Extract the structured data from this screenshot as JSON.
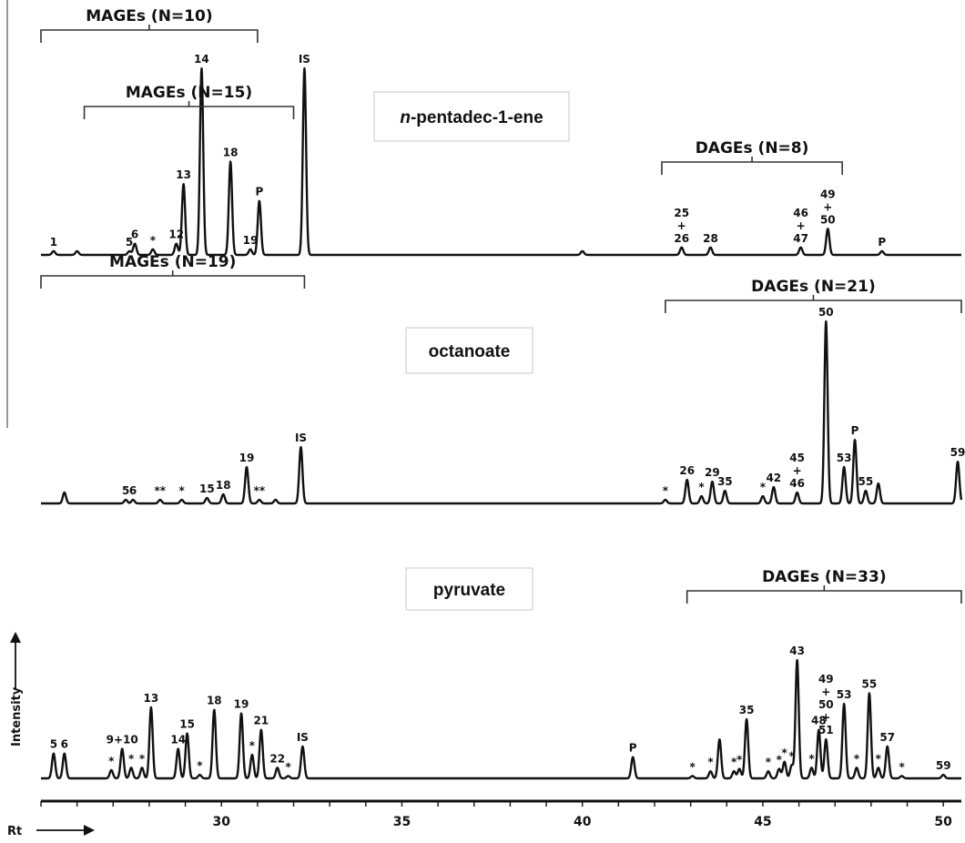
{
  "chart_data": {
    "type": "line",
    "x_axis": {
      "label": "Rt",
      "range": [
        25.0,
        50.5
      ],
      "ticks": [
        30,
        35,
        40,
        45,
        50
      ]
    },
    "y_axis": {
      "label": "Intensity"
    },
    "panels": [
      {
        "name": "n-pentadec-1-ene",
        "title_italic_prefix": "n",
        "title_rest": "-pentadec-1-ene",
        "peaks": [
          {
            "rt": 25.35,
            "h": 0.02,
            "label": "1"
          },
          {
            "rt": 26.0,
            "h": 0.02,
            "label": ""
          },
          {
            "rt": 27.45,
            "h": 0.02,
            "label": "5"
          },
          {
            "rt": 27.6,
            "h": 0.06,
            "label": "6"
          },
          {
            "rt": 28.1,
            "h": 0.03,
            "label": "*"
          },
          {
            "rt": 28.75,
            "h": 0.06,
            "label": "12"
          },
          {
            "rt": 28.95,
            "h": 0.38,
            "label": "13"
          },
          {
            "rt": 29.45,
            "h": 1.0,
            "label": "14"
          },
          {
            "rt": 30.25,
            "h": 0.5,
            "label": "18"
          },
          {
            "rt": 30.8,
            "h": 0.03,
            "label": "19"
          },
          {
            "rt": 31.05,
            "h": 0.29,
            "label": "P"
          },
          {
            "rt": 32.3,
            "h": 1.0,
            "label": "IS"
          },
          {
            "rt": 40.0,
            "h": 0.02,
            "label": ""
          },
          {
            "rt": 42.75,
            "h": 0.04,
            "label": "25\n+\n26"
          },
          {
            "rt": 43.55,
            "h": 0.04,
            "label": "28"
          },
          {
            "rt": 46.05,
            "h": 0.04,
            "label": "46\n+\n47"
          },
          {
            "rt": 46.8,
            "h": 0.14,
            "label": "49\n+\n50"
          },
          {
            "rt": 48.3,
            "h": 0.02,
            "label": "P"
          }
        ],
        "groups": [
          {
            "label": "MAGEs (N=10)",
            "x1": 25.0,
            "x2": 31.0
          },
          {
            "label": "DAGEs (N=8)",
            "x1": 42.2,
            "x2": 47.2
          }
        ]
      },
      {
        "name": "octanoate",
        "title_italic_prefix": "",
        "title_rest": "octanoate",
        "peaks": [
          {
            "rt": 25.65,
            "h": 0.06,
            "label": ""
          },
          {
            "rt": 27.35,
            "h": 0.02,
            "label": "5"
          },
          {
            "rt": 27.55,
            "h": 0.02,
            "label": "6"
          },
          {
            "rt": 28.3,
            "h": 0.02,
            "label": "**"
          },
          {
            "rt": 28.9,
            "h": 0.02,
            "label": "*"
          },
          {
            "rt": 29.6,
            "h": 0.03,
            "label": "15"
          },
          {
            "rt": 30.05,
            "h": 0.05,
            "label": "18"
          },
          {
            "rt": 30.7,
            "h": 0.2,
            "label": "19"
          },
          {
            "rt": 31.05,
            "h": 0.02,
            "label": "**"
          },
          {
            "rt": 31.5,
            "h": 0.02,
            "label": ""
          },
          {
            "rt": 32.2,
            "h": 0.31,
            "label": "IS"
          },
          {
            "rt": 42.3,
            "h": 0.02,
            "label": "*"
          },
          {
            "rt": 42.9,
            "h": 0.13,
            "label": "26"
          },
          {
            "rt": 43.3,
            "h": 0.04,
            "label": "*"
          },
          {
            "rt": 43.6,
            "h": 0.12,
            "label": "29"
          },
          {
            "rt": 43.95,
            "h": 0.07,
            "label": "35"
          },
          {
            "rt": 45.0,
            "h": 0.04,
            "label": "*"
          },
          {
            "rt": 45.3,
            "h": 0.09,
            "label": "42"
          },
          {
            "rt": 45.95,
            "h": 0.06,
            "label": "45\n+\n46"
          },
          {
            "rt": 46.75,
            "h": 1.0,
            "label": "50"
          },
          {
            "rt": 47.25,
            "h": 0.2,
            "label": "53"
          },
          {
            "rt": 47.55,
            "h": 0.35,
            "label": "P"
          },
          {
            "rt": 47.85,
            "h": 0.07,
            "label": "55"
          },
          {
            "rt": 48.2,
            "h": 0.11,
            "label": ""
          },
          {
            "rt": 50.4,
            "h": 0.23,
            "label": "59"
          }
        ],
        "groups": [
          {
            "label": "MAGEs (N=15)",
            "x1": 26.2,
            "x2": 32.0
          },
          {
            "label": "DAGEs (N=21)",
            "x1": 42.3,
            "x2": 50.5
          }
        ]
      },
      {
        "name": "pyruvate",
        "title_italic_prefix": "",
        "title_rest": "pyruvate",
        "peaks": [
          {
            "rt": 25.35,
            "h": 0.21,
            "label": "5"
          },
          {
            "rt": 25.65,
            "h": 0.21,
            "label": "6"
          },
          {
            "rt": 26.95,
            "h": 0.07,
            "label": "*"
          },
          {
            "rt": 27.25,
            "h": 0.25,
            "label": "9+10"
          },
          {
            "rt": 27.5,
            "h": 0.09,
            "label": "*"
          },
          {
            "rt": 27.8,
            "h": 0.09,
            "label": "*"
          },
          {
            "rt": 28.05,
            "h": 0.6,
            "label": "13"
          },
          {
            "rt": 28.8,
            "h": 0.25,
            "label": "14"
          },
          {
            "rt": 29.05,
            "h": 0.38,
            "label": "15"
          },
          {
            "rt": 29.4,
            "h": 0.03,
            "label": "*"
          },
          {
            "rt": 29.8,
            "h": 0.58,
            "label": "18"
          },
          {
            "rt": 30.55,
            "h": 0.55,
            "label": "19"
          },
          {
            "rt": 30.85,
            "h": 0.2,
            "label": "*"
          },
          {
            "rt": 31.1,
            "h": 0.41,
            "label": "21"
          },
          {
            "rt": 31.55,
            "h": 0.09,
            "label": "22"
          },
          {
            "rt": 31.85,
            "h": 0.02,
            "label": "*"
          },
          {
            "rt": 32.25,
            "h": 0.27,
            "label": "IS"
          },
          {
            "rt": 41.4,
            "h": 0.18,
            "label": "P"
          },
          {
            "rt": 43.05,
            "h": 0.02,
            "label": "*"
          },
          {
            "rt": 43.55,
            "h": 0.06,
            "label": "*"
          },
          {
            "rt": 43.8,
            "h": 0.33,
            "label": ""
          },
          {
            "rt": 44.2,
            "h": 0.06,
            "label": "*"
          },
          {
            "rt": 44.35,
            "h": 0.08,
            "label": "*"
          },
          {
            "rt": 44.55,
            "h": 0.5,
            "label": "35"
          },
          {
            "rt": 45.15,
            "h": 0.06,
            "label": "*"
          },
          {
            "rt": 45.45,
            "h": 0.08,
            "label": "*"
          },
          {
            "rt": 45.6,
            "h": 0.14,
            "label": "*"
          },
          {
            "rt": 45.8,
            "h": 0.11,
            "label": "*"
          },
          {
            "rt": 45.95,
            "h": 1.0,
            "label": "43"
          },
          {
            "rt": 46.35,
            "h": 0.09,
            "label": "*"
          },
          {
            "rt": 46.55,
            "h": 0.41,
            "label": "48"
          },
          {
            "rt": 46.75,
            "h": 0.33,
            "label": "49\n+\n50\n+\n51"
          },
          {
            "rt": 47.25,
            "h": 0.63,
            "label": "53"
          },
          {
            "rt": 47.6,
            "h": 0.09,
            "label": "*"
          },
          {
            "rt": 47.95,
            "h": 0.72,
            "label": "55"
          },
          {
            "rt": 48.2,
            "h": 0.09,
            "label": "*"
          },
          {
            "rt": 48.45,
            "h": 0.27,
            "label": "57"
          },
          {
            "rt": 48.85,
            "h": 0.02,
            "label": "*"
          },
          {
            "rt": 50.0,
            "h": 0.03,
            "label": "59"
          }
        ],
        "groups": [
          {
            "label": "MAGEs (N=19)",
            "x1": 25.0,
            "x2": 32.3
          },
          {
            "label": "DAGEs (N=33)",
            "x1": 42.9,
            "x2": 50.5
          }
        ]
      }
    ]
  }
}
